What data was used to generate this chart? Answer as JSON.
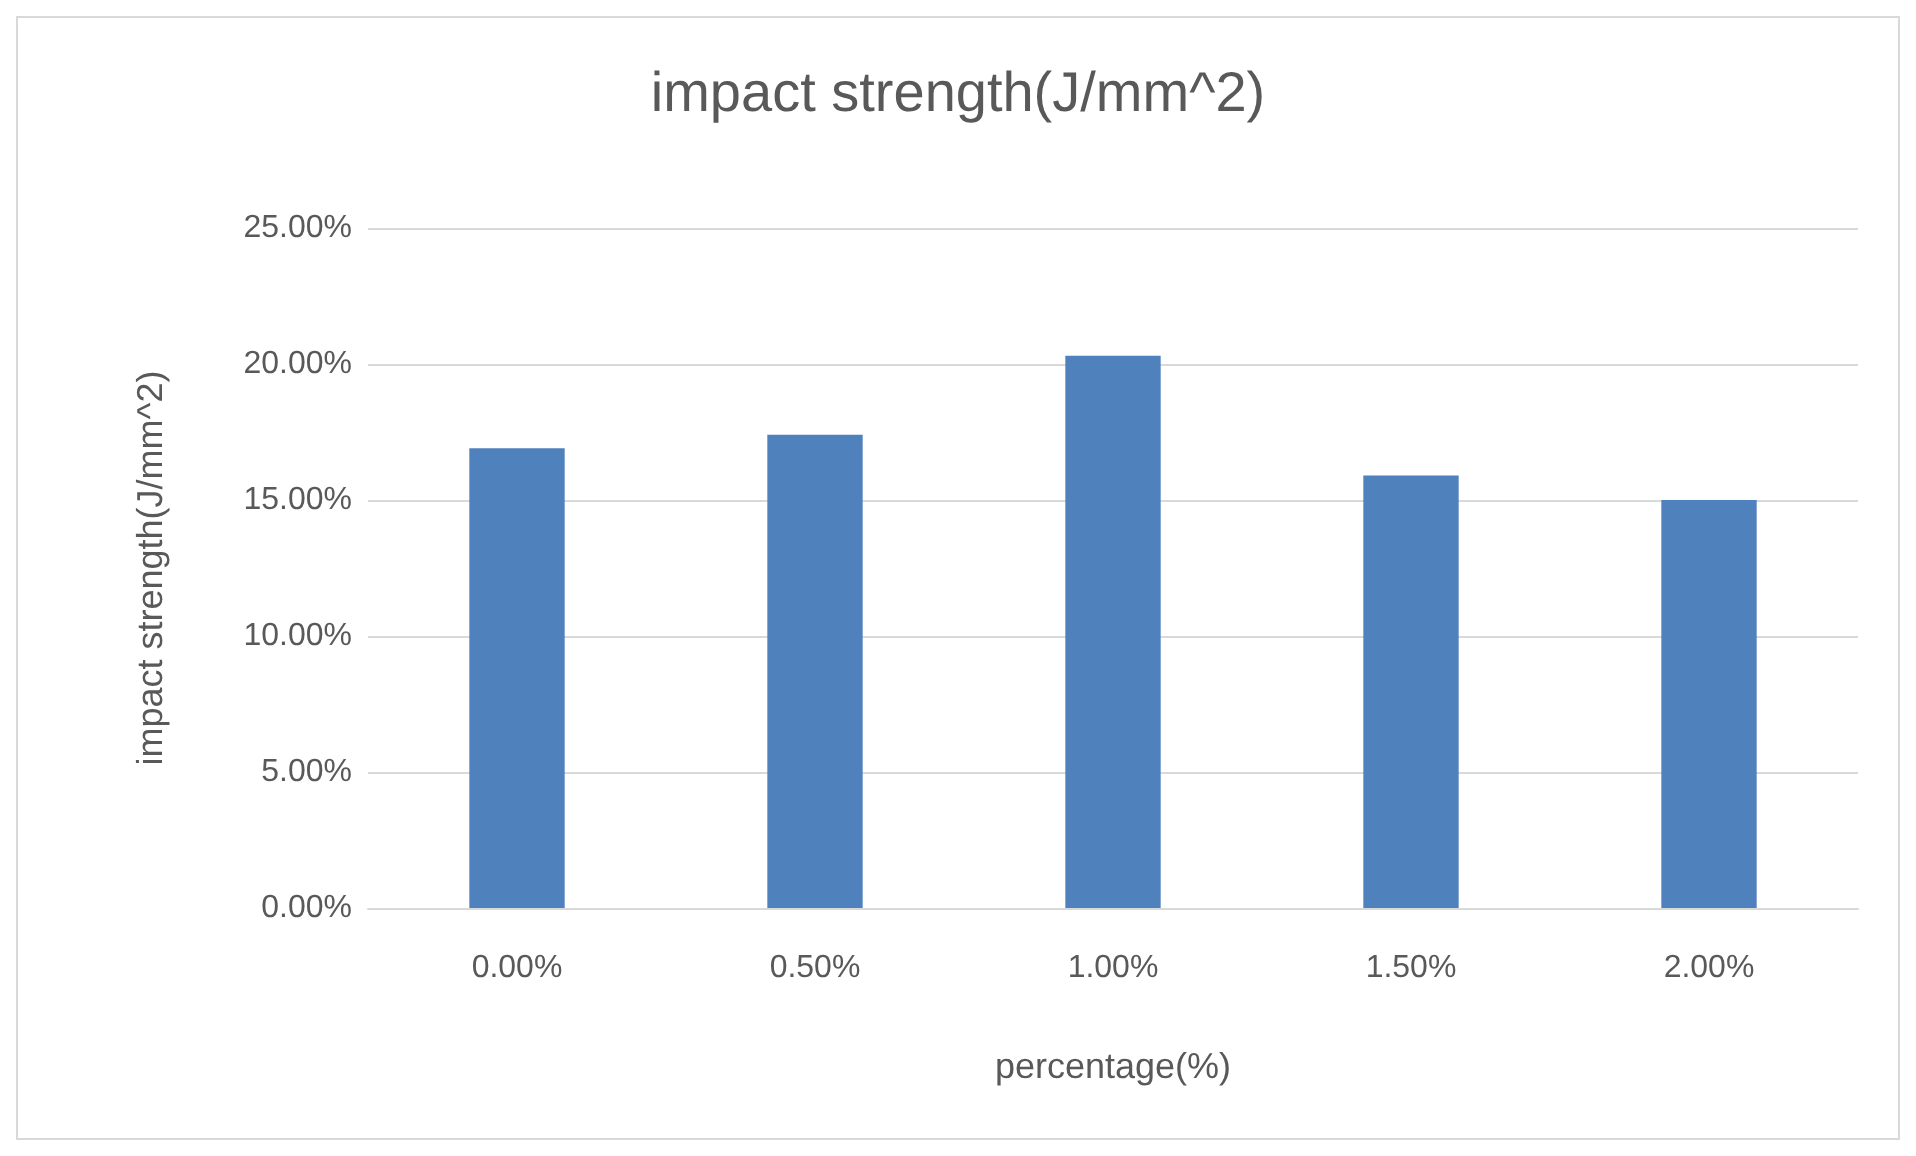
{
  "chart_data": {
    "type": "bar",
    "title": "impact strength(J/mm^2)",
    "xlabel": "percentage(%)",
    "ylabel": "impact strength(J/mm^2)",
    "categories": [
      "0.00%",
      "0.50%",
      "1.00%",
      "1.50%",
      "2.00%"
    ],
    "values": [
      16.9,
      17.4,
      20.3,
      15.9,
      15.0
    ],
    "color": "#4f81bd",
    "ylim": [
      0,
      25
    ],
    "yticks": [
      {
        "value": 0,
        "label": "0.00%"
      },
      {
        "value": 5,
        "label": "5.00%"
      },
      {
        "value": 10,
        "label": "10.00%"
      },
      {
        "value": 15,
        "label": "15.00%"
      },
      {
        "value": 20,
        "label": "20.00%"
      },
      {
        "value": 25,
        "label": "25.00%"
      }
    ],
    "grid": "y"
  }
}
